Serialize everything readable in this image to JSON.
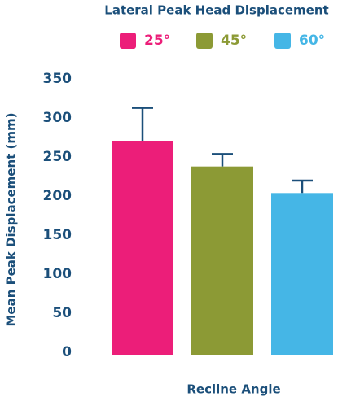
{
  "chart_data": {
    "type": "bar",
    "title": "Lateral Peak Head Displacement",
    "y_label": "Mean Peak Displacement (mm)",
    "x_label": "Recline Angle",
    "categories": [
      null
    ],
    "series": [
      {
        "name": "25°",
        "color": "#ec1e79",
        "values": [
          275
        ],
        "errors": [
          42
        ]
      },
      {
        "name": "45°",
        "color": "#8c9a35",
        "values": [
          242
        ],
        "errors": [
          16
        ]
      },
      {
        "name": "60°",
        "color": "#45b6e6",
        "values": [
          208
        ],
        "errors": [
          16
        ]
      }
    ],
    "error_color": "#1b4f7a",
    "ylim": [
      0,
      350
    ],
    "yticks": [
      0,
      50,
      100,
      150,
      200,
      250,
      300,
      350
    ],
    "grid": false
  }
}
